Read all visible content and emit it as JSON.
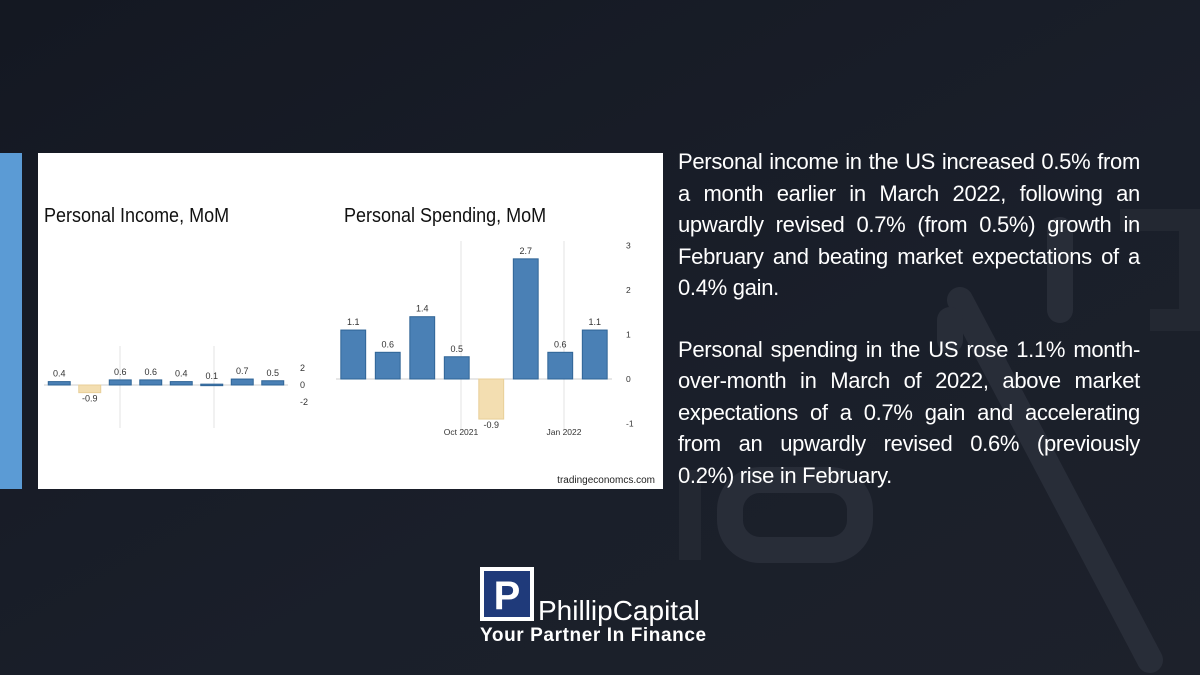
{
  "colors": {
    "background": "#161a24",
    "accent_bar": "#5b9bd5",
    "bar_positive": "#4a80b5",
    "bar_negative": "#f3deb1",
    "text": "#ffffff"
  },
  "chart_data": [
    {
      "type": "bar",
      "title": "Personal Income, MoM",
      "values": [
        0.4,
        -0.9,
        0.6,
        0.6,
        0.4,
        0.1,
        0.7,
        0.5
      ],
      "value_labels": [
        "0.4",
        "-0.9",
        "0.6",
        "0.6",
        "0.4",
        "0.1",
        "0.7",
        "0.5"
      ],
      "yticks": [
        "2",
        "0",
        "-2"
      ],
      "ylim": [
        -2,
        2
      ]
    },
    {
      "type": "bar",
      "title": "Personal Spending, MoM",
      "values": [
        1.1,
        0.6,
        1.4,
        0.5,
        -0.9,
        2.7,
        0.6,
        1.1
      ],
      "value_labels": [
        "1.1",
        "0.6",
        "1.4",
        "0.5",
        "-0.9",
        "2.7",
        "0.6",
        "1.1"
      ],
      "xticks": [
        "Oct 2021",
        "Jan 2022"
      ],
      "yticks": [
        "3",
        "2",
        "1",
        "0",
        "-1"
      ],
      "ylim": [
        -1,
        3
      ]
    }
  ],
  "source": "tradingeconomcs.com",
  "paragraphs": [
    "Personal income in the US increased 0.5% from a month earlier in March 2022, following an upwardly revised 0.7% (from 0.5%) growth in February and beating market expectations of a 0.4% gain.",
    "Personal spending in the US rose 1.1% month-over-month in March of 2022, above market expectations of a 0.7% gain and accelerating from an upwardly revised 0.6% (previously 0.2%) rise in February."
  ],
  "logo": {
    "letter": "P",
    "name": "PhillipCapital",
    "tagline": "Your Partner In Finance"
  }
}
